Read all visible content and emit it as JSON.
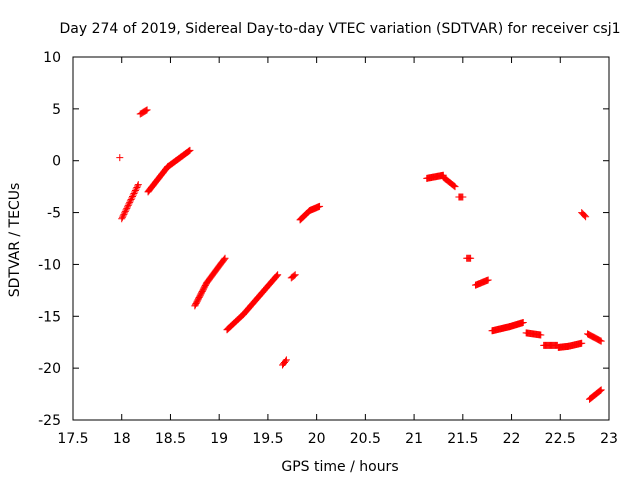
{
  "chart_data": {
    "type": "scatter",
    "title": "Day 274 of 2019, Sidereal Day-to-day VTEC variation (SDTVAR) for receiver csj1",
    "xlabel": "GPS time / hours",
    "ylabel": "SDTVAR / TECUs",
    "xlim": [
      17.5,
      23
    ],
    "ylim": [
      -25,
      10
    ],
    "xticks": [
      "17.5",
      "18",
      "18.5",
      "19",
      "19.5",
      "20",
      "20.5",
      "21",
      "21.5",
      "22",
      "22.5",
      "23"
    ],
    "yticks": [
      "10",
      "5",
      "0",
      "-5",
      "-10",
      "-15",
      "-20",
      "-25"
    ],
    "grid": false,
    "marker": "plus",
    "color": "#ff0000",
    "segments": [
      {
        "x": [
          17.98,
          17.98
        ],
        "y": [
          0.3,
          0.3
        ],
        "n": 1
      },
      {
        "x": [
          18.0,
          18.17
        ],
        "y": [
          -5.6,
          -2.3
        ],
        "n": 24
      },
      {
        "x": [
          18.19,
          18.26
        ],
        "y": [
          4.5,
          4.9
        ],
        "n": 8
      },
      {
        "x": [
          18.27,
          18.47
        ],
        "y": [
          -3.0,
          -0.6
        ],
        "n": 30
      },
      {
        "x": [
          18.47,
          18.7
        ],
        "y": [
          -0.6,
          1.0
        ],
        "n": 32
      },
      {
        "x": [
          18.75,
          18.87
        ],
        "y": [
          -14.0,
          -11.8
        ],
        "n": 20
      },
      {
        "x": [
          18.87,
          19.06
        ],
        "y": [
          -11.8,
          -9.4
        ],
        "n": 26
      },
      {
        "x": [
          19.08,
          19.25
        ],
        "y": [
          -16.3,
          -14.8
        ],
        "n": 24
      },
      {
        "x": [
          19.25,
          19.6
        ],
        "y": [
          -14.8,
          -11.0
        ],
        "n": 50
      },
      {
        "x": [
          19.65,
          19.69
        ],
        "y": [
          -19.7,
          -19.2
        ],
        "n": 5
      },
      {
        "x": [
          19.74,
          19.78
        ],
        "y": [
          -11.3,
          -11.0
        ],
        "n": 5
      },
      {
        "x": [
          19.83,
          19.93
        ],
        "y": [
          -5.7,
          -4.8
        ],
        "n": 16
      },
      {
        "x": [
          19.93,
          20.03
        ],
        "y": [
          -4.8,
          -4.4
        ],
        "n": 14
      },
      {
        "x": [
          21.13,
          21.3
        ],
        "y": [
          -1.7,
          -1.4
        ],
        "n": 22
      },
      {
        "x": [
          21.3,
          21.42
        ],
        "y": [
          -1.6,
          -2.5
        ],
        "n": 14
      },
      {
        "x": [
          21.46,
          21.5
        ],
        "y": [
          -3.5,
          -3.5
        ],
        "n": 5
      },
      {
        "x": [
          21.54,
          21.58
        ],
        "y": [
          -9.4,
          -9.4
        ],
        "n": 5
      },
      {
        "x": [
          21.63,
          21.76
        ],
        "y": [
          -12.0,
          -11.5
        ],
        "n": 16
      },
      {
        "x": [
          21.8,
          21.98
        ],
        "y": [
          -16.4,
          -16.0
        ],
        "n": 24
      },
      {
        "x": [
          21.98,
          22.12
        ],
        "y": [
          -16.0,
          -15.6
        ],
        "n": 20
      },
      {
        "x": [
          22.15,
          22.3
        ],
        "y": [
          -16.6,
          -16.8
        ],
        "n": 18
      },
      {
        "x": [
          22.33,
          22.47
        ],
        "y": [
          -17.8,
          -17.8
        ],
        "n": 16
      },
      {
        "x": [
          22.48,
          22.58
        ],
        "y": [
          -18.0,
          -17.9
        ],
        "n": 14
      },
      {
        "x": [
          22.58,
          22.72
        ],
        "y": [
          -17.9,
          -17.6
        ],
        "n": 18
      },
      {
        "x": [
          22.72,
          22.76
        ],
        "y": [
          -5.0,
          -5.4
        ],
        "n": 5
      },
      {
        "x": [
          22.78,
          22.92
        ],
        "y": [
          -16.7,
          -17.4
        ],
        "n": 16
      },
      {
        "x": [
          22.8,
          22.92
        ],
        "y": [
          -23.0,
          -22.1
        ],
        "n": 16
      }
    ]
  }
}
